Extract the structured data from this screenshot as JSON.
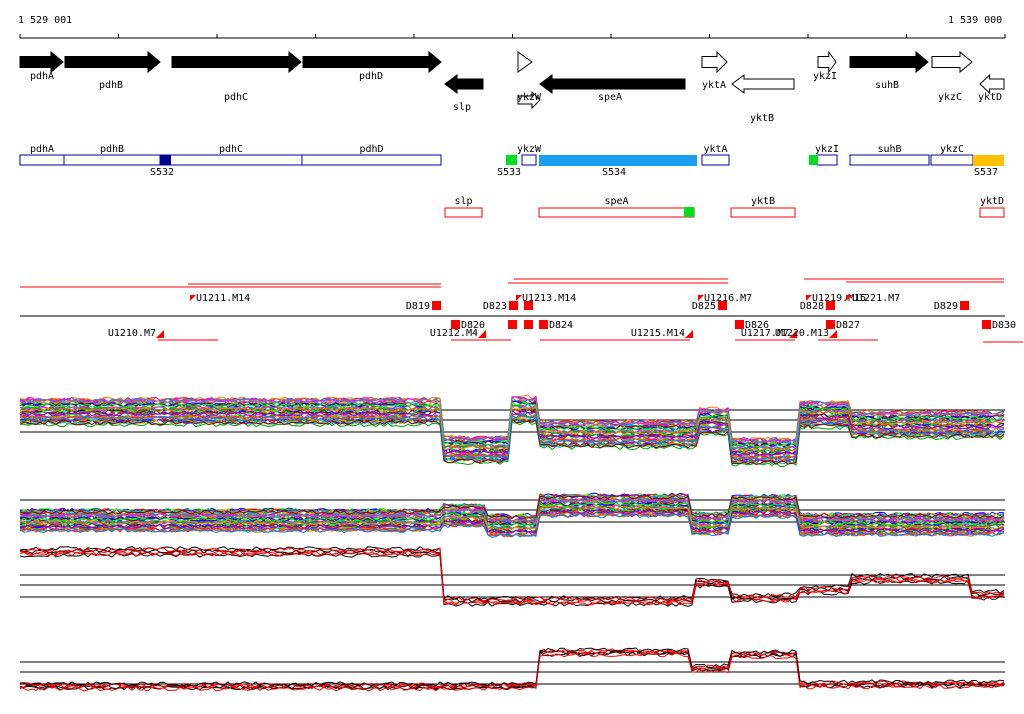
{
  "coords": {
    "start": "1 529 001",
    "end": "1 539 000"
  },
  "colors": {
    "black": "#000000",
    "blue_outline": "#0000a0",
    "light_blue": "#1a9ff0",
    "green": "#00e020",
    "yellow": "#ffc000",
    "red": "#ff0000",
    "navy": "#000090"
  },
  "genes_forward": [
    {
      "label": "pdhA",
      "style": "filled"
    },
    {
      "label": "pdhB",
      "style": "filled"
    },
    {
      "label": "pdhC",
      "style": "filled"
    },
    {
      "label": "pdhD",
      "style": "filled"
    },
    {
      "label": "ykzW",
      "style": "outline"
    },
    {
      "label": "yktA",
      "style": "outline"
    },
    {
      "label": "ykzI",
      "style": "outline"
    },
    {
      "label": "suhB",
      "style": "filled"
    },
    {
      "label": "ykzC",
      "style": "outline"
    }
  ],
  "genes_reverse": [
    {
      "label": "slp",
      "style": "filled"
    },
    {
      "label": "speA",
      "style": "filled"
    },
    {
      "label": "yktB",
      "style": "outline"
    },
    {
      "label": "yktD",
      "style": "outline"
    }
  ],
  "segments_blue": [
    {
      "label": "pdhA"
    },
    {
      "label": "pdhB"
    },
    {
      "label": "pdhC"
    },
    {
      "label": "pdhD"
    },
    {
      "label": "ykzW"
    },
    {
      "label": "yktA"
    },
    {
      "label": "ykzI"
    },
    {
      "label": "suhB"
    },
    {
      "label": "ykzC"
    }
  ],
  "segments_red": [
    {
      "label": "slp"
    },
    {
      "label": "speA"
    },
    {
      "label": "yktB"
    },
    {
      "label": "yktD"
    }
  ],
  "s_labels": [
    "S532",
    "S533",
    "S534",
    "S537"
  ],
  "upper_labels": [
    "U1211.M14",
    "U1213.M14",
    "U1216.M7",
    "U1219.M15",
    "U1221.M7"
  ],
  "lower_labels": [
    "U1210.M7",
    "U1212.M4",
    "U1215.M14",
    "U1217.M7",
    "U1220.M13"
  ],
  "d_labels_upper": [
    "D819",
    "D823",
    "D825",
    "D828",
    "D829"
  ],
  "d_labels_lower": [
    "D820",
    "D824",
    "D826",
    "D827",
    "D830"
  ]
}
